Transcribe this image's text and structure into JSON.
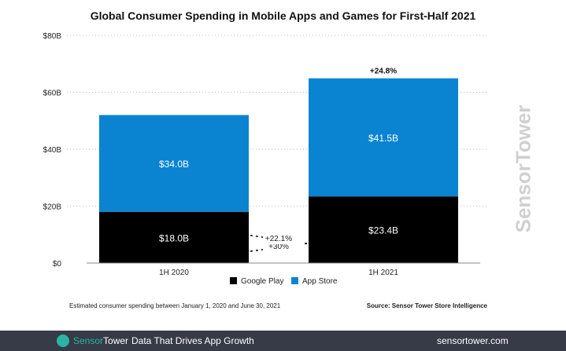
{
  "chart_data": {
    "type": "bar",
    "stacked": true,
    "title": "Global Consumer Spending in Mobile Apps and Games for First-Half 2021",
    "categories": [
      "1H 2020",
      "1H 2021"
    ],
    "series": [
      {
        "name": "Google Play",
        "color": "#000000",
        "values": [
          18.0,
          23.4
        ],
        "labels": [
          "$18.0B",
          "$23.4B"
        ]
      },
      {
        "name": "App Store",
        "color": "#0a84d0",
        "values": [
          34.0,
          41.5
        ],
        "labels": [
          "$34.0B",
          "$41.5B"
        ]
      }
    ],
    "ylim": [
      0,
      80
    ],
    "yticks": [
      "$0",
      "$20B",
      "$40B",
      "$60B",
      "$80B"
    ],
    "grid": true,
    "legend": "bottom",
    "annotations": {
      "google_play_growth": "+30%",
      "app_store_growth": "+22.1%",
      "total_growth": "+24.8%"
    }
  },
  "note": "Estimated consumer spending between January 1, 2020 and June 30, 2021",
  "source": "Source: Sensor Tower Store Intelligence",
  "watermark": "SensorTower",
  "footer": {
    "brand_a": "Sensor",
    "brand_b": "Tower",
    "tagline": "Data That Drives App Growth",
    "url": "sensortower.com"
  }
}
